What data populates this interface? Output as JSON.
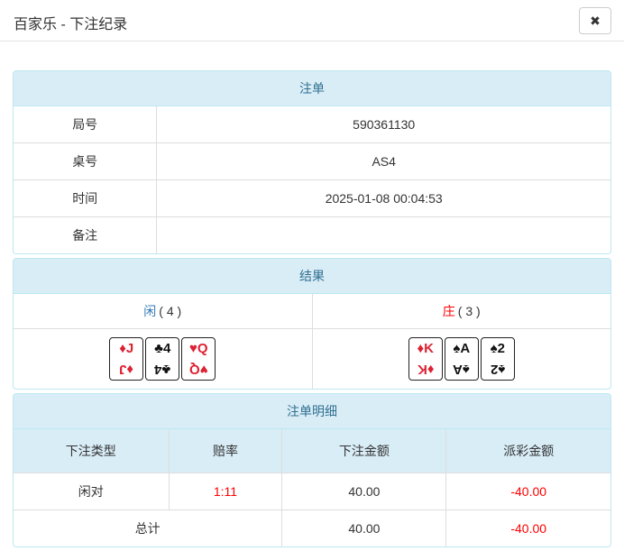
{
  "modal": {
    "title": "百家乐 - 下注纪录",
    "close_icon": "✖"
  },
  "colors": {
    "panel_border": "#bce8f1",
    "panel_heading_bg": "#d9edf7",
    "panel_heading_text": "#31708f",
    "cell_border": "#ddd",
    "player_blue": "#337ab7",
    "banker_red": "#ff0000",
    "negative_red": "#ff0000",
    "card_red": "#dd2233",
    "card_black": "#111111"
  },
  "bet_slip": {
    "title": "注单",
    "rows": [
      {
        "label": "局号",
        "value": "590361130"
      },
      {
        "label": "桌号",
        "value": "AS4"
      },
      {
        "label": "时间",
        "value": "2025-01-08 00:04:53"
      },
      {
        "label": "备注",
        "value": ""
      }
    ]
  },
  "result": {
    "title": "结果",
    "player": {
      "label": "闲",
      "points": "( 4 )",
      "cards": [
        {
          "suit": "♦",
          "rank": "J",
          "color": "red"
        },
        {
          "suit": "♣",
          "rank": "4",
          "color": "black"
        },
        {
          "suit": "♥",
          "rank": "Q",
          "color": "red"
        }
      ]
    },
    "banker": {
      "label": "庄",
      "points": "( 3 )",
      "cards": [
        {
          "suit": "♦",
          "rank": "K",
          "color": "red"
        },
        {
          "suit": "♠",
          "rank": "A",
          "color": "black"
        },
        {
          "suit": "♠",
          "rank": "2",
          "color": "black"
        }
      ]
    }
  },
  "bet_details": {
    "title": "注单明细",
    "columns": [
      "下注类型",
      "赔率",
      "下注金额",
      "派彩金额"
    ],
    "rows": [
      {
        "bet_type": "闲对",
        "odds": "1:11",
        "bet_amount": "40.00",
        "payout": "-40.00"
      }
    ],
    "total": {
      "label": "总计",
      "bet_amount": "40.00",
      "payout": "-40.00"
    }
  }
}
